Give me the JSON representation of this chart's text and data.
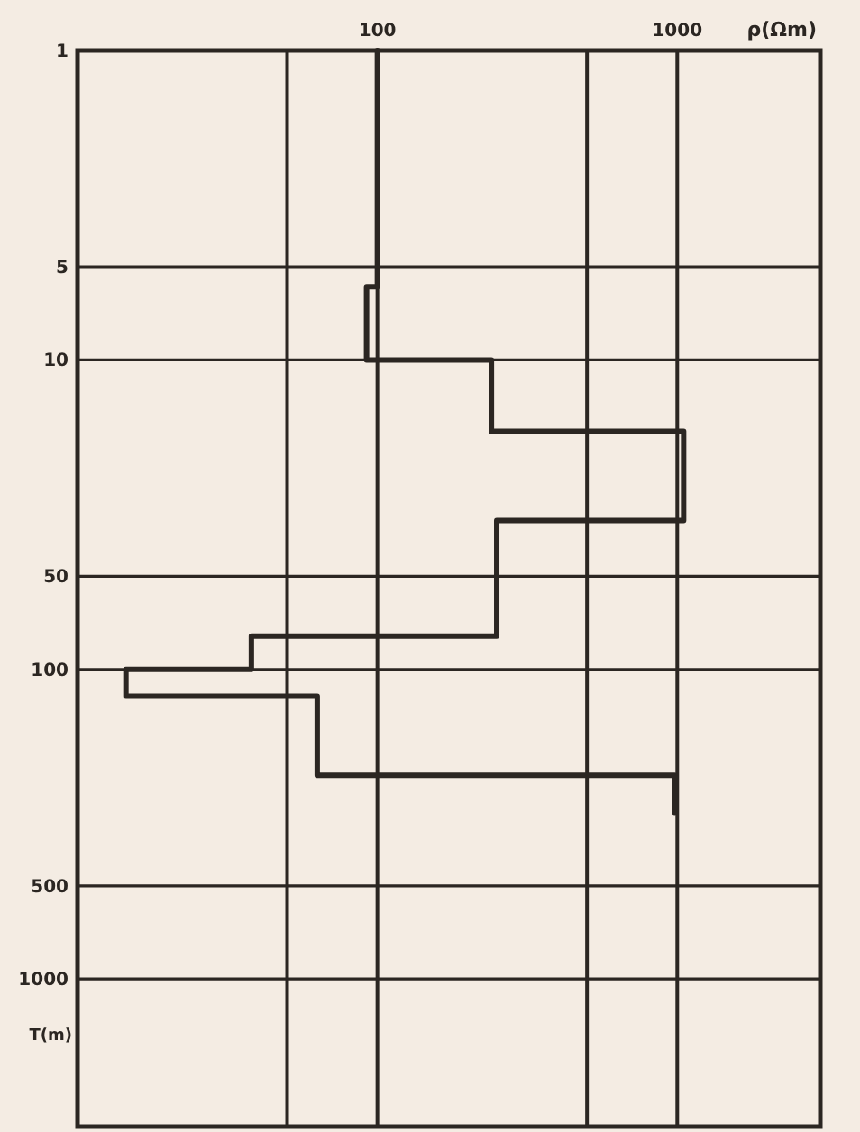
{
  "chart_data": {
    "type": "line",
    "xlabel": "ρ(Ωm)",
    "ylabel": "T(m)",
    "log": "xy",
    "grid": true,
    "line_style": "solid",
    "xlim": [
      10,
      3000
    ],
    "xticks": [
      {
        "value": 50,
        "label": null
      },
      100,
      {
        "value": 500,
        "label": null
      },
      1000
    ],
    "ylim": [
      3000,
      1
    ],
    "yticks": [
      1,
      5,
      10,
      50,
      100,
      500,
      1000
    ],
    "series": [
      {
        "color": "#2b2622",
        "x": [
          100,
          100,
          92,
          92,
          240,
          240,
          1050,
          1050,
          250,
          250,
          38,
          38,
          14.5,
          14.5,
          63,
          63,
          980,
          980
        ],
        "values": [
          1,
          5.8,
          5.8,
          10,
          10,
          17,
          17,
          33,
          33,
          78,
          78,
          100,
          100,
          122,
          122,
          220,
          220,
          290
        ]
      }
    ]
  }
}
